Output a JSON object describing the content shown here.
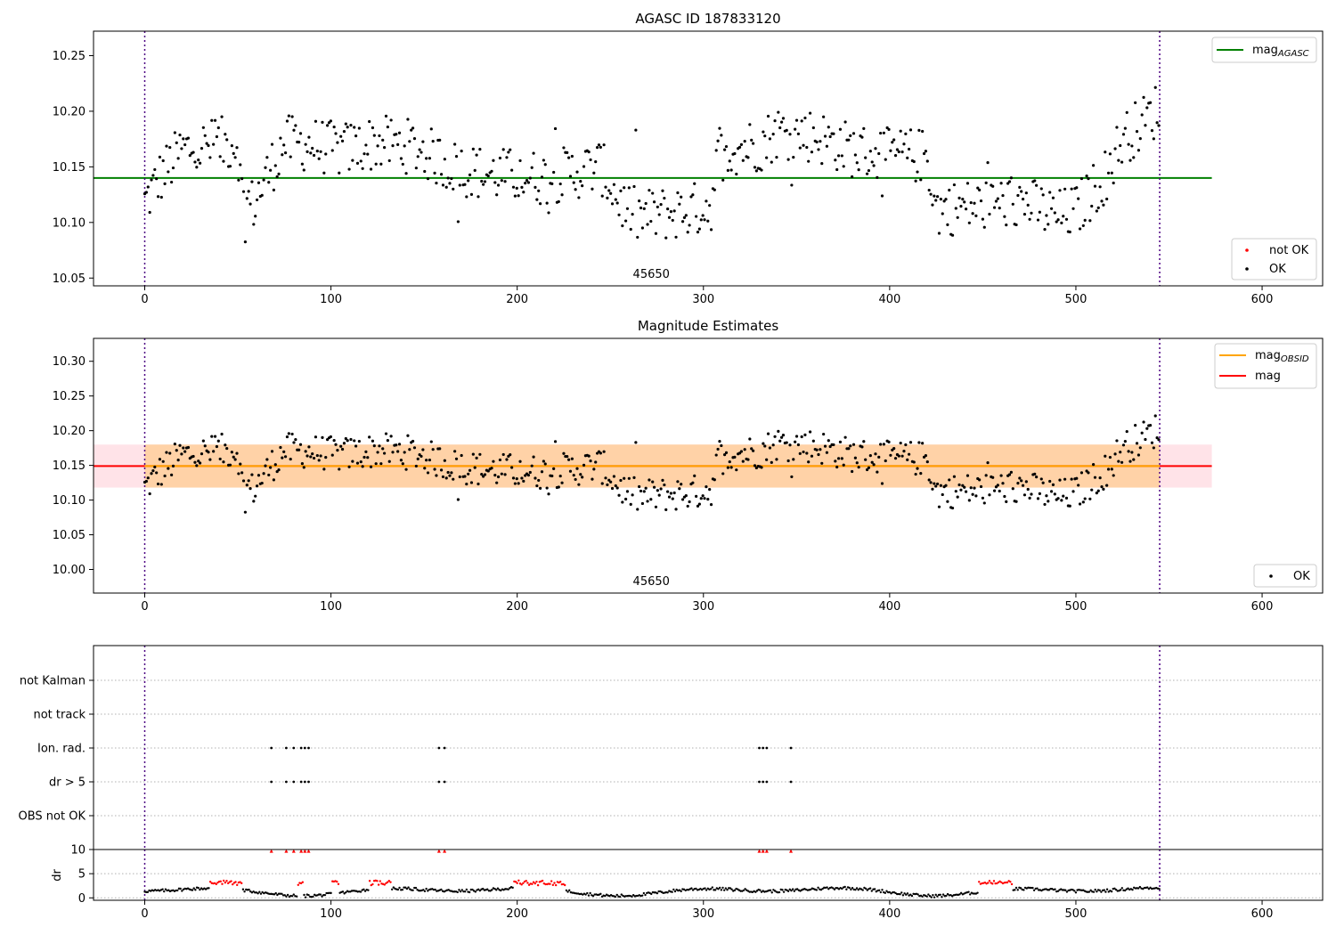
{
  "chart_data": [
    {
      "id": "agasc",
      "type": "scatter",
      "title": "AGASC ID 187833120",
      "xlim": [
        -27.5,
        632.5
      ],
      "ylim": [
        10.043,
        10.272
      ],
      "xticks": [
        0,
        100,
        200,
        300,
        400,
        500,
        600
      ],
      "yticks": [
        10.05,
        10.1,
        10.15,
        10.2,
        10.25
      ],
      "ytick_labels": [
        "10.05",
        "10.10",
        "10.15",
        "10.20",
        "10.25"
      ],
      "obsid_label": "45650",
      "obsid_label_x": 272,
      "vlines_x": [
        0,
        545
      ],
      "hline": {
        "y": 10.14,
        "xmin": -27.5,
        "xmax": 573,
        "color": "#008000"
      },
      "point_color": "#000000",
      "legend_top": [
        {
          "label": "mag",
          "sub": "AGASC",
          "color": "#008000"
        }
      ],
      "legend_bottom": [
        {
          "label": "not OK",
          "color": "#ff0000"
        },
        {
          "label": "OK",
          "color": "#000000"
        }
      ]
    },
    {
      "id": "estimates",
      "type": "scatter",
      "title": "Magnitude Estimates",
      "xlim": [
        -27.5,
        632.5
      ],
      "ylim": [
        9.966,
        10.333
      ],
      "xticks": [
        0,
        100,
        200,
        300,
        400,
        500,
        600
      ],
      "yticks": [
        10.0,
        10.05,
        10.1,
        10.15,
        10.2,
        10.25,
        10.3
      ],
      "ytick_labels": [
        "10.00",
        "10.05",
        "10.10",
        "10.15",
        "10.20",
        "10.25",
        "10.30"
      ],
      "obsid_label": "45650",
      "obsid_label_x": 272,
      "vlines_x": [
        0,
        545
      ],
      "bands": [
        {
          "y0": 10.118,
          "y1": 10.18,
          "xmin": -27.5,
          "xmax": 573,
          "color": "#ffc0cb",
          "opacity": 0.45
        },
        {
          "y0": 10.118,
          "y1": 10.18,
          "xmin": 0,
          "xmax": 545,
          "color": "#ffa500",
          "opacity": 0.28
        }
      ],
      "hlines": [
        {
          "y": 10.149,
          "xmin": -27.5,
          "xmax": 573,
          "color": "#ff0000"
        },
        {
          "y": 10.149,
          "xmin": 0,
          "xmax": 545,
          "color": "#ffa500"
        }
      ],
      "point_color": "#000000",
      "legend_top": [
        {
          "label": "mag",
          "sub": "OBSID",
          "color": "#ffa500"
        },
        {
          "label": "mag",
          "sub": "",
          "color": "#ff0000"
        }
      ],
      "legend_bottom": [
        {
          "label": "OK",
          "color": "#000000"
        }
      ]
    },
    {
      "id": "flags",
      "type": "scatter",
      "xlim": [
        -27.5,
        632.5
      ],
      "categories": [
        "not Kalman",
        "not track",
        "Ion. rad.",
        "dr > 5",
        "OBS not OK"
      ],
      "flag_points": {
        "Ion. rad.": [
          68,
          76,
          80,
          84,
          86,
          88,
          158,
          161,
          330,
          332,
          334,
          347
        ],
        "dr > 5": [
          68,
          76,
          80,
          84,
          86,
          88,
          158,
          161,
          330,
          332,
          334,
          347
        ]
      },
      "vlines_x": [
        0,
        545
      ]
    },
    {
      "id": "dr",
      "type": "scatter",
      "ylabel": "dr",
      "xlim": [
        -27.5,
        632.5
      ],
      "ylim": [
        -0.5,
        10
      ],
      "yticks": [
        0,
        5,
        10
      ],
      "ytick_labels": [
        "0",
        "5",
        "10"
      ],
      "xticks": [
        0,
        100,
        200,
        300,
        400,
        500,
        600
      ],
      "xtick_labels": [
        "0",
        "100",
        "200",
        "300",
        "400",
        "500",
        "600"
      ],
      "clipped_x": [
        68,
        76,
        80,
        84,
        86,
        88,
        158,
        161,
        330,
        332,
        334,
        347
      ],
      "red_ranges": [
        [
          35,
          52
        ],
        [
          100,
          104
        ],
        [
          198,
          226
        ],
        [
          448,
          466
        ],
        [
          120,
          132
        ],
        [
          82,
          85
        ]
      ],
      "vlines_x": [
        0,
        545
      ]
    }
  ]
}
